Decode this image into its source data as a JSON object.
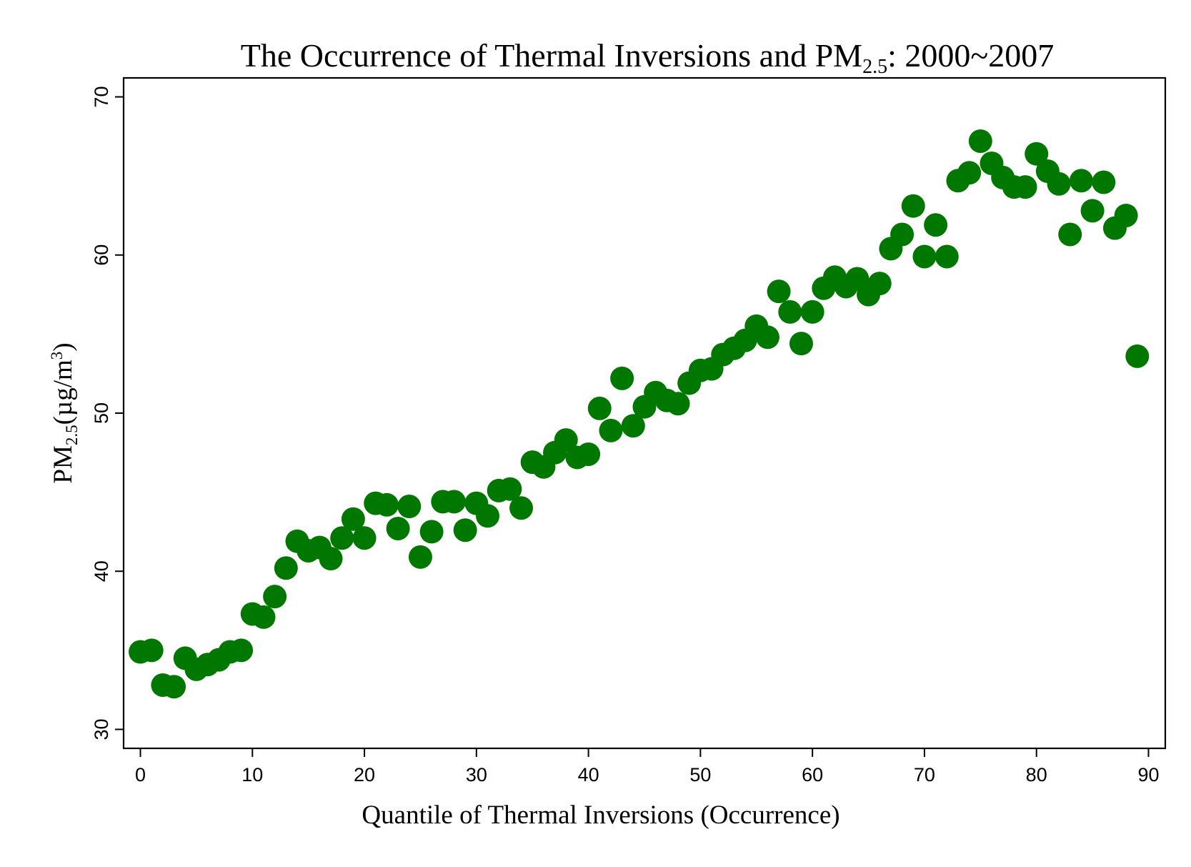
{
  "chart_data": {
    "type": "scatter",
    "title": {
      "prefix": "The Occurrence of Thermal Inversions and PM",
      "subscript": "2.5",
      "suffix": ": 2000~2007"
    },
    "xlabel": "Quantile of Thermal Inversions (Occurrence)",
    "ylabel": {
      "prefix": "PM",
      "subscript": "2.5",
      "unit": "(µg/m",
      "superscript": "3",
      "close": ")"
    },
    "xlim": [
      -1.5,
      91.5
    ],
    "ylim": [
      28.8,
      71.2
    ],
    "x_ticks": [
      0,
      10,
      20,
      30,
      40,
      50,
      60,
      70,
      80,
      90
    ],
    "y_ticks": [
      30,
      40,
      50,
      60,
      70
    ],
    "marker_color": "#007800",
    "grid": false,
    "legend": "none",
    "x": [
      0,
      1,
      2,
      3,
      4,
      5,
      6,
      7,
      8,
      9,
      10,
      11,
      12,
      13,
      14,
      15,
      16,
      17,
      18,
      19,
      20,
      21,
      22,
      23,
      24,
      25,
      26,
      27,
      28,
      29,
      30,
      31,
      32,
      33,
      34,
      35,
      36,
      37,
      38,
      39,
      40,
      41,
      42,
      43,
      44,
      45,
      46,
      47,
      48,
      49,
      50,
      51,
      52,
      53,
      54,
      55,
      56,
      57,
      58,
      59,
      60,
      61,
      62,
      63,
      64,
      65,
      66,
      67,
      68,
      69,
      70,
      71,
      72,
      73,
      74,
      75,
      76,
      77,
      78,
      79,
      80,
      81,
      82,
      83,
      84,
      85,
      86,
      87,
      88,
      89
    ],
    "y": [
      34.9,
      35.0,
      32.8,
      32.7,
      34.5,
      33.8,
      34.1,
      34.4,
      34.9,
      35.0,
      37.3,
      37.1,
      38.4,
      40.2,
      41.9,
      41.3,
      41.5,
      40.8,
      42.1,
      43.3,
      42.1,
      44.3,
      44.2,
      42.7,
      44.1,
      40.9,
      42.5,
      44.4,
      44.4,
      42.6,
      44.3,
      43.5,
      45.1,
      45.2,
      44.0,
      46.9,
      46.6,
      47.5,
      48.3,
      47.2,
      47.4,
      50.3,
      48.9,
      52.2,
      49.2,
      50.4,
      51.3,
      50.8,
      50.6,
      51.9,
      52.7,
      52.8,
      53.7,
      54.1,
      54.6,
      55.5,
      54.8,
      57.7,
      56.4,
      54.4,
      56.4,
      57.9,
      58.6,
      58.0,
      58.5,
      57.5,
      58.2,
      60.4,
      61.3,
      63.1,
      59.9,
      61.9,
      59.9,
      64.7,
      65.2,
      67.2,
      65.8,
      64.9,
      64.3,
      64.3,
      66.4,
      65.3,
      64.5,
      61.3,
      64.7,
      62.8,
      64.6,
      61.7,
      62.5,
      53.6
    ]
  }
}
